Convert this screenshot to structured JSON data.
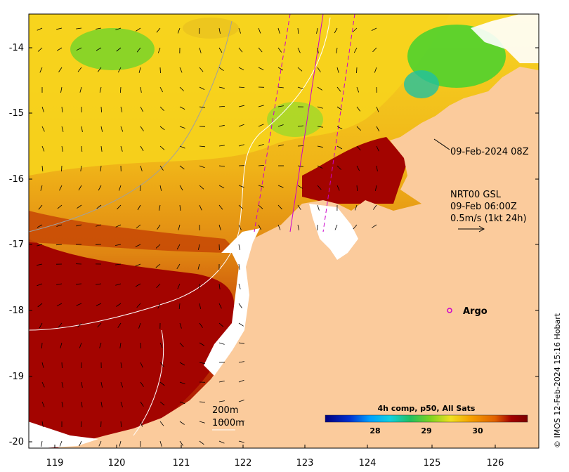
{
  "map": {
    "x_ticks": [
      "119",
      "120",
      "121",
      "122",
      "123",
      "124",
      "125",
      "126"
    ],
    "y_ticks": [
      "-14",
      "-15",
      "-16",
      "-17",
      "-18",
      "-19",
      "-20"
    ],
    "colors": {
      "land": "#fbcb9c",
      "hot": "#a30400",
      "warm": "#e0820a",
      "mid": "#f0b010",
      "cool": "#f7d31c",
      "green": "#4fd12d",
      "cloud": "#ffffff",
      "track": "#cc00cc"
    }
  },
  "annotations": {
    "timestamp": "09-Feb-2024 08Z",
    "current_title": "NRT00 GSL",
    "current_time": "09-Feb 06:00Z",
    "current_scale": "0.5m/s (1kt 24h)",
    "argo_label": "Argo",
    "contour_200": "200m",
    "contour_1000": "1000m"
  },
  "colorbar": {
    "title": "4h comp, p50, All Sats",
    "ticks": [
      "28",
      "29",
      "30"
    ],
    "stops": [
      "#00007f",
      "#0030d0",
      "#00a0ff",
      "#10d0e0",
      "#20c060",
      "#7ed320",
      "#f0e020",
      "#f6a000",
      "#e06000",
      "#a30000",
      "#7a0000"
    ]
  },
  "credit": "© IMOS 12-Feb-2024 15:16 Hobart"
}
